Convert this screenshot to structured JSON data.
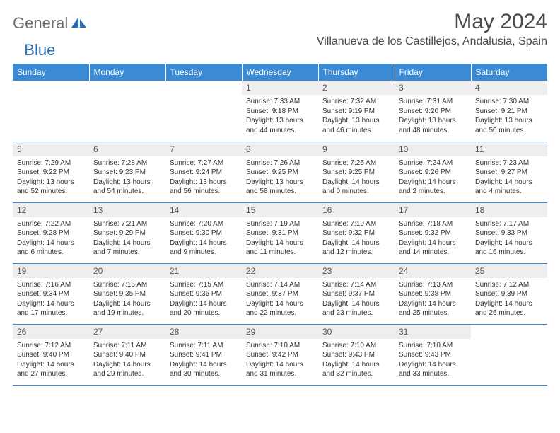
{
  "logo": {
    "text1": "General",
    "text2": "Blue"
  },
  "title": "May 2024",
  "location": "Villanueva de los Castillejos, Andalusia, Spain",
  "colors": {
    "header_bg": "#3b8bd4",
    "header_text": "#ffffff",
    "daynum_bg": "#eeeeee",
    "row_border": "#3b8bd4",
    "logo_gray": "#6b6b6b",
    "logo_blue": "#2a6fb5"
  },
  "day_headers": [
    "Sunday",
    "Monday",
    "Tuesday",
    "Wednesday",
    "Thursday",
    "Friday",
    "Saturday"
  ],
  "weeks": [
    [
      null,
      null,
      null,
      {
        "n": "1",
        "sr": "Sunrise: 7:33 AM",
        "ss": "Sunset: 9:18 PM",
        "d1": "Daylight: 13 hours",
        "d2": "and 44 minutes."
      },
      {
        "n": "2",
        "sr": "Sunrise: 7:32 AM",
        "ss": "Sunset: 9:19 PM",
        "d1": "Daylight: 13 hours",
        "d2": "and 46 minutes."
      },
      {
        "n": "3",
        "sr": "Sunrise: 7:31 AM",
        "ss": "Sunset: 9:20 PM",
        "d1": "Daylight: 13 hours",
        "d2": "and 48 minutes."
      },
      {
        "n": "4",
        "sr": "Sunrise: 7:30 AM",
        "ss": "Sunset: 9:21 PM",
        "d1": "Daylight: 13 hours",
        "d2": "and 50 minutes."
      }
    ],
    [
      {
        "n": "5",
        "sr": "Sunrise: 7:29 AM",
        "ss": "Sunset: 9:22 PM",
        "d1": "Daylight: 13 hours",
        "d2": "and 52 minutes."
      },
      {
        "n": "6",
        "sr": "Sunrise: 7:28 AM",
        "ss": "Sunset: 9:23 PM",
        "d1": "Daylight: 13 hours",
        "d2": "and 54 minutes."
      },
      {
        "n": "7",
        "sr": "Sunrise: 7:27 AM",
        "ss": "Sunset: 9:24 PM",
        "d1": "Daylight: 13 hours",
        "d2": "and 56 minutes."
      },
      {
        "n": "8",
        "sr": "Sunrise: 7:26 AM",
        "ss": "Sunset: 9:25 PM",
        "d1": "Daylight: 13 hours",
        "d2": "and 58 minutes."
      },
      {
        "n": "9",
        "sr": "Sunrise: 7:25 AM",
        "ss": "Sunset: 9:25 PM",
        "d1": "Daylight: 14 hours",
        "d2": "and 0 minutes."
      },
      {
        "n": "10",
        "sr": "Sunrise: 7:24 AM",
        "ss": "Sunset: 9:26 PM",
        "d1": "Daylight: 14 hours",
        "d2": "and 2 minutes."
      },
      {
        "n": "11",
        "sr": "Sunrise: 7:23 AM",
        "ss": "Sunset: 9:27 PM",
        "d1": "Daylight: 14 hours",
        "d2": "and 4 minutes."
      }
    ],
    [
      {
        "n": "12",
        "sr": "Sunrise: 7:22 AM",
        "ss": "Sunset: 9:28 PM",
        "d1": "Daylight: 14 hours",
        "d2": "and 6 minutes."
      },
      {
        "n": "13",
        "sr": "Sunrise: 7:21 AM",
        "ss": "Sunset: 9:29 PM",
        "d1": "Daylight: 14 hours",
        "d2": "and 7 minutes."
      },
      {
        "n": "14",
        "sr": "Sunrise: 7:20 AM",
        "ss": "Sunset: 9:30 PM",
        "d1": "Daylight: 14 hours",
        "d2": "and 9 minutes."
      },
      {
        "n": "15",
        "sr": "Sunrise: 7:19 AM",
        "ss": "Sunset: 9:31 PM",
        "d1": "Daylight: 14 hours",
        "d2": "and 11 minutes."
      },
      {
        "n": "16",
        "sr": "Sunrise: 7:19 AM",
        "ss": "Sunset: 9:32 PM",
        "d1": "Daylight: 14 hours",
        "d2": "and 12 minutes."
      },
      {
        "n": "17",
        "sr": "Sunrise: 7:18 AM",
        "ss": "Sunset: 9:32 PM",
        "d1": "Daylight: 14 hours",
        "d2": "and 14 minutes."
      },
      {
        "n": "18",
        "sr": "Sunrise: 7:17 AM",
        "ss": "Sunset: 9:33 PM",
        "d1": "Daylight: 14 hours",
        "d2": "and 16 minutes."
      }
    ],
    [
      {
        "n": "19",
        "sr": "Sunrise: 7:16 AM",
        "ss": "Sunset: 9:34 PM",
        "d1": "Daylight: 14 hours",
        "d2": "and 17 minutes."
      },
      {
        "n": "20",
        "sr": "Sunrise: 7:16 AM",
        "ss": "Sunset: 9:35 PM",
        "d1": "Daylight: 14 hours",
        "d2": "and 19 minutes."
      },
      {
        "n": "21",
        "sr": "Sunrise: 7:15 AM",
        "ss": "Sunset: 9:36 PM",
        "d1": "Daylight: 14 hours",
        "d2": "and 20 minutes."
      },
      {
        "n": "22",
        "sr": "Sunrise: 7:14 AM",
        "ss": "Sunset: 9:37 PM",
        "d1": "Daylight: 14 hours",
        "d2": "and 22 minutes."
      },
      {
        "n": "23",
        "sr": "Sunrise: 7:14 AM",
        "ss": "Sunset: 9:37 PM",
        "d1": "Daylight: 14 hours",
        "d2": "and 23 minutes."
      },
      {
        "n": "24",
        "sr": "Sunrise: 7:13 AM",
        "ss": "Sunset: 9:38 PM",
        "d1": "Daylight: 14 hours",
        "d2": "and 25 minutes."
      },
      {
        "n": "25",
        "sr": "Sunrise: 7:12 AM",
        "ss": "Sunset: 9:39 PM",
        "d1": "Daylight: 14 hours",
        "d2": "and 26 minutes."
      }
    ],
    [
      {
        "n": "26",
        "sr": "Sunrise: 7:12 AM",
        "ss": "Sunset: 9:40 PM",
        "d1": "Daylight: 14 hours",
        "d2": "and 27 minutes."
      },
      {
        "n": "27",
        "sr": "Sunrise: 7:11 AM",
        "ss": "Sunset: 9:40 PM",
        "d1": "Daylight: 14 hours",
        "d2": "and 29 minutes."
      },
      {
        "n": "28",
        "sr": "Sunrise: 7:11 AM",
        "ss": "Sunset: 9:41 PM",
        "d1": "Daylight: 14 hours",
        "d2": "and 30 minutes."
      },
      {
        "n": "29",
        "sr": "Sunrise: 7:10 AM",
        "ss": "Sunset: 9:42 PM",
        "d1": "Daylight: 14 hours",
        "d2": "and 31 minutes."
      },
      {
        "n": "30",
        "sr": "Sunrise: 7:10 AM",
        "ss": "Sunset: 9:43 PM",
        "d1": "Daylight: 14 hours",
        "d2": "and 32 minutes."
      },
      {
        "n": "31",
        "sr": "Sunrise: 7:10 AM",
        "ss": "Sunset: 9:43 PM",
        "d1": "Daylight: 14 hours",
        "d2": "and 33 minutes."
      },
      null
    ]
  ]
}
